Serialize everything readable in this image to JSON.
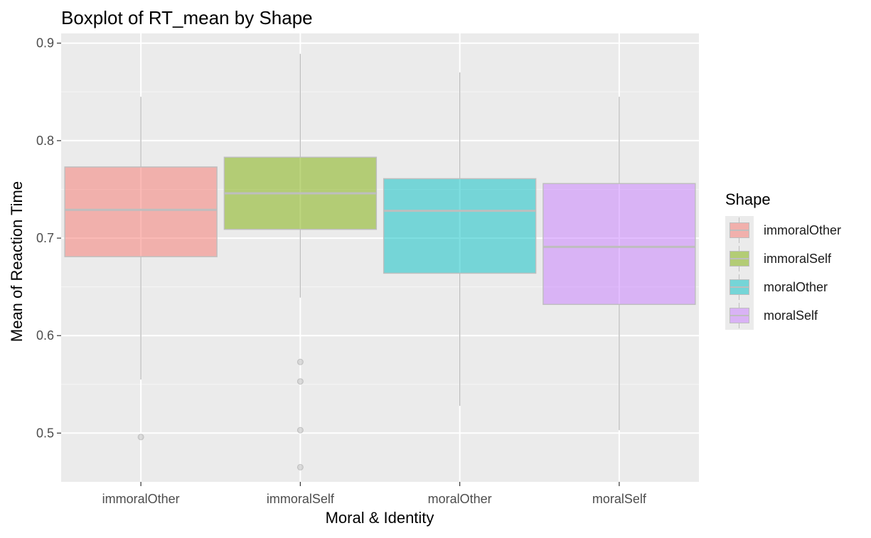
{
  "chart_data": {
    "type": "boxplot",
    "title": "Boxplot of RT_mean by Shape",
    "xlabel": "Moral & Identity",
    "ylabel": "Mean of Reaction Time",
    "ylim": [
      0.45,
      0.91
    ],
    "y_ticks": [
      "0.5",
      "0.6",
      "0.7",
      "0.8",
      "0.9"
    ],
    "grid": true,
    "legend_title": "Shape",
    "legend_position": "right",
    "categories": [
      "immoralOther",
      "immoralSelf",
      "moralOther",
      "moralSelf"
    ],
    "series": [
      {
        "name": "immoralOther",
        "color": "#F8766D",
        "whisker_low": 0.555,
        "q1": 0.681,
        "median": 0.729,
        "q3": 0.773,
        "whisker_high": 0.845,
        "outliers": [
          0.496
        ]
      },
      {
        "name": "immoralSelf",
        "color": "#7CAE00",
        "whisker_low": 0.639,
        "q1": 0.709,
        "median": 0.746,
        "q3": 0.783,
        "whisker_high": 0.889,
        "outliers": [
          0.573,
          0.553,
          0.503,
          0.465
        ]
      },
      {
        "name": "moralOther",
        "color": "#00BFC4",
        "whisker_low": 0.528,
        "q1": 0.664,
        "median": 0.728,
        "q3": 0.761,
        "whisker_high": 0.87,
        "outliers": []
      },
      {
        "name": "moralSelf",
        "color": "#C77CFF",
        "whisker_low": 0.503,
        "q1": 0.632,
        "median": 0.691,
        "q3": 0.756,
        "whisker_high": 0.845,
        "outliers": []
      }
    ]
  }
}
